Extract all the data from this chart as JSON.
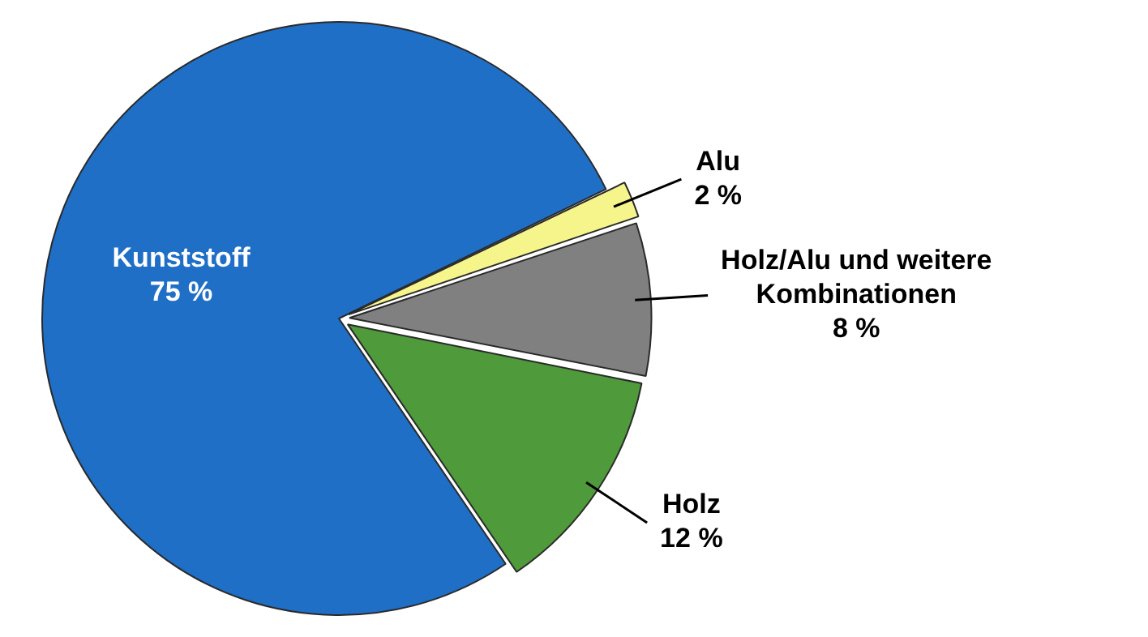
{
  "chart_data": {
    "type": "pie",
    "categories": [
      "Kunststoff",
      "Alu",
      "Holz/Alu und weitere Kombinationen",
      "Holz"
    ],
    "values": [
      75,
      2,
      8,
      12
    ],
    "value_labels": [
      "75 %",
      "2 %",
      "8 %",
      "12 %"
    ],
    "colors": [
      "#1f6fc6",
      "#f6f58c",
      "#808080",
      "#4f9a3a"
    ]
  }
}
